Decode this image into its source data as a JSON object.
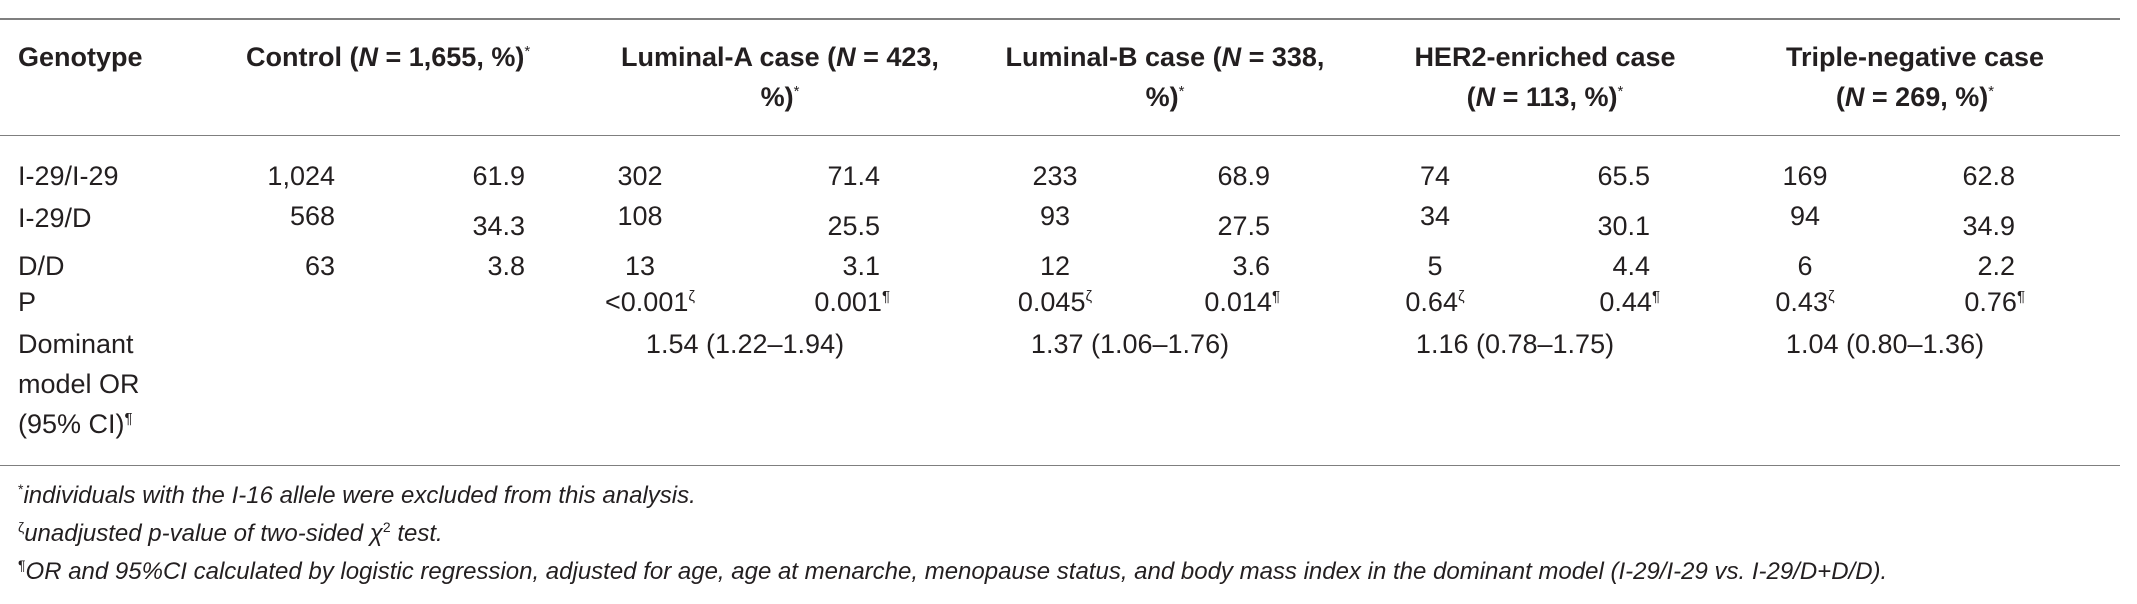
{
  "table": {
    "headers": {
      "genotype": "Genotype",
      "control": {
        "pre": "Control (",
        "n": "N",
        "post": " = 1,655, %)",
        "mark": "*"
      },
      "luminal_a": {
        "line1_pre": "Luminal-A case (",
        "n": "N",
        "line1_post": " = 423,",
        "line2": "%)",
        "mark": "*"
      },
      "luminal_b": {
        "line1_pre": "Luminal-B case (",
        "n": "N",
        "line1_post": " = 338,",
        "line2": "%)",
        "mark": "*"
      },
      "her2": {
        "line1": "HER2-enriched case",
        "line2_pre": "(",
        "n": "N",
        "line2_post": " = 113, %)",
        "mark": "*"
      },
      "triple_negative": {
        "line1": "Triple-negative case",
        "line2_pre": "(",
        "n": "N",
        "line2_post": " = 269, %)",
        "mark": "*"
      }
    },
    "rows": [
      {
        "label": "I-29/I-29",
        "control_n": "1,024",
        "control_pct": "61.9",
        "la_n": "302",
        "la_pct": "71.4",
        "lb_n": "233",
        "lb_pct": "68.9",
        "her2_n": "74",
        "her2_pct": "65.5",
        "tn_n": "169",
        "tn_pct": "62.8"
      },
      {
        "label": "I-29/D",
        "control_n": "568",
        "control_pct": "34.3",
        "la_n": "108",
        "la_pct": "25.5",
        "lb_n": "93",
        "lb_pct": "27.5",
        "her2_n": "34",
        "her2_pct": "30.1",
        "tn_n": "94",
        "tn_pct": "34.9"
      },
      {
        "label": "D/D",
        "control_n": "63",
        "control_pct": "3.8",
        "la_n": "13",
        "la_pct": "3.1",
        "lb_n": "12",
        "lb_pct": "3.6",
        "her2_n": "5",
        "her2_pct": "4.4",
        "tn_n": "6",
        "tn_pct": "2.2"
      }
    ],
    "p_row": {
      "label": "P",
      "la_chi": "<0.001",
      "la_lr": "0.001",
      "lb_chi": "0.045",
      "lb_lr": "0.014",
      "her2_chi": "0.64",
      "her2_lr": "0.44",
      "tn_chi": "0.43",
      "tn_lr": "0.76",
      "chi_mark": "ζ",
      "lr_mark": "¶"
    },
    "or_row": {
      "label_line1": "Dominant",
      "label_line2": "model OR",
      "label_line3": "(95% CI)",
      "label_mark": "¶",
      "la": "1.54 (1.22–1.94)",
      "lb": "1.37 (1.06–1.76)",
      "her2": "1.16 (0.78–1.75)",
      "tn": "1.04 (0.80–1.36)"
    }
  },
  "footnotes": {
    "star_mark": "*",
    "star_text": "individuals with the I-16 allele were excluded from this analysis.",
    "zeta_mark": "ζ",
    "zeta_text_pre": "unadjusted p-value of two-sided ",
    "zeta_chi": "χ",
    "zeta_sup": "2",
    "zeta_text_post": " test.",
    "pilcrow_mark": "¶",
    "pilcrow_text": "OR and 95%CI calculated by logistic regression, adjusted for age, age at menarche, menopause status, and body mass index in the dominant model (I-29/I-29 vs. I-29/D+D/D)."
  }
}
